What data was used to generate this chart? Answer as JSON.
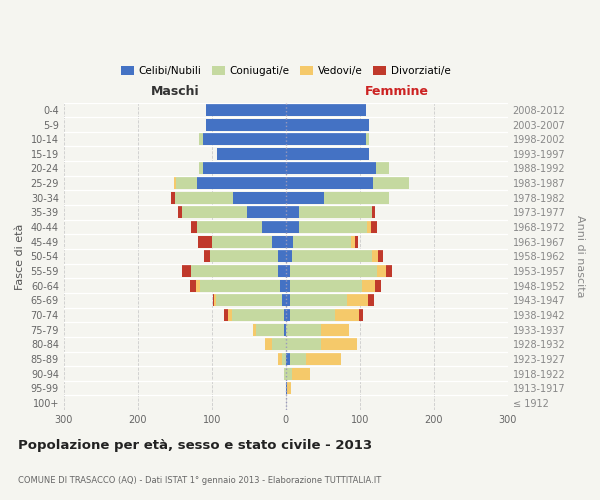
{
  "age_groups": [
    "100+",
    "95-99",
    "90-94",
    "85-89",
    "80-84",
    "75-79",
    "70-74",
    "65-69",
    "60-64",
    "55-59",
    "50-54",
    "45-49",
    "40-44",
    "35-39",
    "30-34",
    "25-29",
    "20-24",
    "15-19",
    "10-14",
    "5-9",
    "0-4"
  ],
  "birth_years": [
    "≤ 1912",
    "1913-1917",
    "1918-1922",
    "1923-1927",
    "1928-1932",
    "1933-1937",
    "1938-1942",
    "1943-1947",
    "1948-1952",
    "1953-1957",
    "1958-1962",
    "1963-1967",
    "1968-1972",
    "1973-1977",
    "1978-1982",
    "1983-1987",
    "1988-1992",
    "1993-1997",
    "1998-2002",
    "2003-2007",
    "2008-2012"
  ],
  "males": {
    "celibi": [
      0,
      0,
      0,
      0,
      0,
      2,
      3,
      5,
      8,
      10,
      10,
      18,
      32,
      52,
      72,
      120,
      112,
      93,
      112,
      108,
      108
    ],
    "coniugati": [
      0,
      0,
      2,
      5,
      18,
      38,
      70,
      90,
      108,
      118,
      92,
      82,
      88,
      88,
      78,
      28,
      5,
      0,
      5,
      0,
      0
    ],
    "vedovi": [
      0,
      0,
      0,
      5,
      10,
      5,
      5,
      2,
      5,
      0,
      0,
      0,
      0,
      0,
      0,
      3,
      0,
      0,
      0,
      0,
      0
    ],
    "divorziati": [
      0,
      0,
      0,
      0,
      0,
      0,
      5,
      2,
      8,
      12,
      8,
      18,
      8,
      5,
      5,
      0,
      0,
      0,
      0,
      0,
      0
    ]
  },
  "females": {
    "nubili": [
      0,
      2,
      0,
      5,
      0,
      0,
      5,
      5,
      5,
      5,
      8,
      10,
      18,
      18,
      52,
      118,
      122,
      112,
      108,
      112,
      108
    ],
    "coniugate": [
      0,
      0,
      8,
      22,
      48,
      48,
      62,
      78,
      98,
      118,
      108,
      78,
      92,
      98,
      88,
      48,
      18,
      0,
      5,
      0,
      0
    ],
    "vedove": [
      0,
      5,
      25,
      48,
      48,
      38,
      32,
      28,
      18,
      12,
      8,
      5,
      5,
      0,
      0,
      0,
      0,
      0,
      0,
      0,
      0
    ],
    "divorziate": [
      0,
      0,
      0,
      0,
      0,
      0,
      5,
      8,
      8,
      8,
      8,
      5,
      8,
      5,
      0,
      0,
      0,
      0,
      0,
      0,
      0
    ]
  },
  "colors": {
    "celibi": "#4472c4",
    "coniugati": "#c5d9a0",
    "vedovi": "#f5c96a",
    "divorziati": "#c0392b"
  },
  "legend_labels": [
    "Celibi/Nubili",
    "Coniugati/e",
    "Vedovi/e",
    "Divorziati/e"
  ],
  "title": "Popolazione per età, sesso e stato civile - 2013",
  "subtitle": "COMUNE DI TRASACCO (AQ) - Dati ISTAT 1° gennaio 2013 - Elaborazione TUTTITALIA.IT",
  "label_maschi": "Maschi",
  "label_femmine": "Femmine",
  "ylabel_left": "Fasce di età",
  "ylabel_right": "Anni di nascita",
  "xlim": 300,
  "background_color": "#f5f5f0",
  "grid_color": "#cccccc",
  "maschi_color": "#333333",
  "femmine_color": "#cc2222"
}
